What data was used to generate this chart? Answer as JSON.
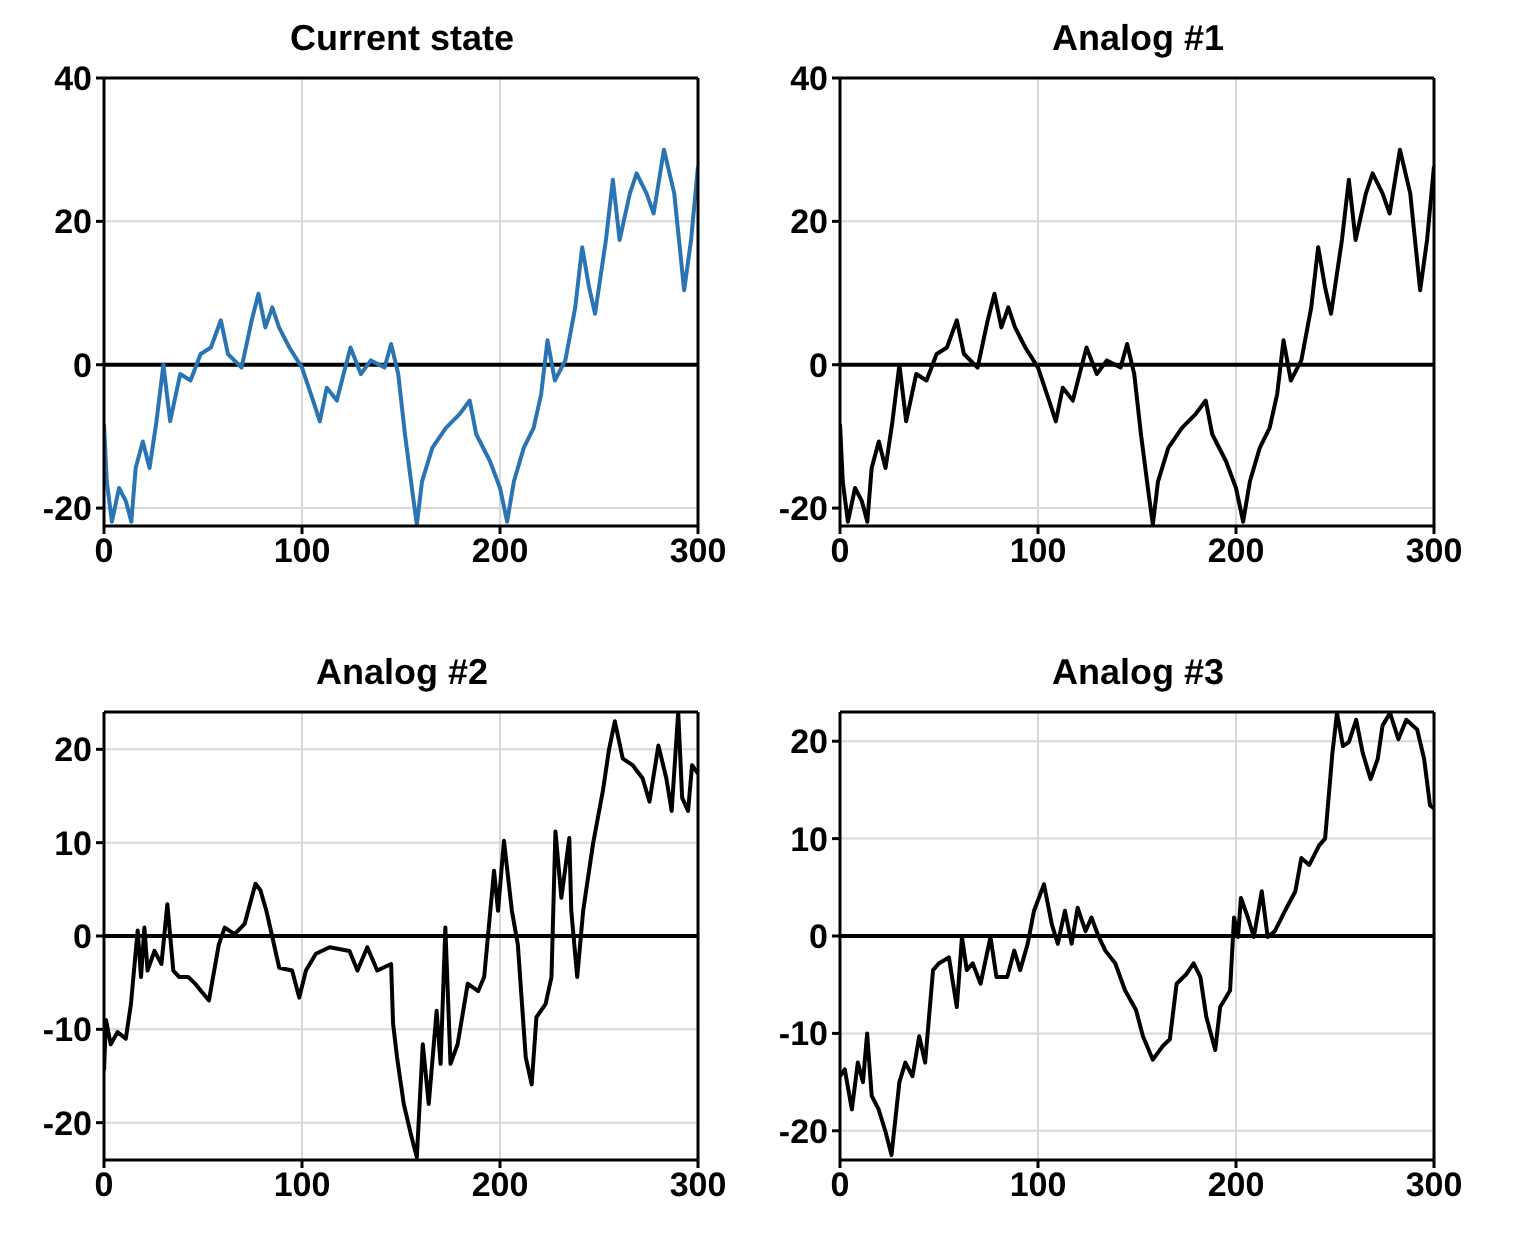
{
  "chart_data": [
    {
      "type": "line",
      "title": "Current state",
      "x": [
        0,
        1.4,
        4,
        7.6,
        11,
        13.8,
        16,
        19.6,
        23,
        26.5,
        30,
        33.4,
        38.5,
        43.7,
        48.8,
        54,
        59,
        62.6,
        69.5,
        74.6,
        78,
        81.5,
        85,
        88.4,
        93.6,
        100,
        105.6,
        109,
        112.5,
        117.6,
        121,
        124.5,
        129.7,
        134.8,
        141.7,
        145,
        148.6,
        152,
        155.5,
        158,
        160.6,
        165.8,
        172.7,
        179.6,
        184.7,
        188,
        195,
        200,
        203.6,
        207,
        212,
        217,
        220.8,
        224,
        227.7,
        233,
        238,
        241.5,
        245,
        248,
        253.5,
        257,
        260.4,
        265.6,
        269,
        274,
        277.6,
        282.8,
        288,
        293,
        296.5,
        300
      ],
      "series": [
        {
          "color": "#2a74b4",
          "values": [
            -8.3,
            -16.3,
            -21.9,
            -17.2,
            -19,
            -21.9,
            -14.4,
            -10.7,
            -14.4,
            -7.9,
            0,
            -7.9,
            -1.3,
            -2.2,
            1.5,
            2.4,
            6.2,
            1.5,
            -0.4,
            6.2,
            9.9,
            5.2,
            8,
            5.2,
            2.4,
            -0.4,
            -5,
            -7.9,
            -3.2,
            -5,
            -1.3,
            2.4,
            -1.3,
            0.6,
            -0.4,
            2.9,
            -1.3,
            -9.7,
            -17.2,
            -22.3,
            -16.3,
            -11.6,
            -8.8,
            -6.9,
            -5,
            -9.7,
            -13.5,
            -17.2,
            -21.9,
            -16.3,
            -11.6,
            -8.8,
            -4.1,
            3.4,
            -2.2,
            0.6,
            8,
            16.4,
            10.8,
            7.1,
            17.4,
            25.8,
            17.4,
            23.9,
            26.7,
            23.9,
            21.1,
            30,
            23.9,
            10.4,
            17.4,
            27.7
          ]
        }
      ],
      "xlim": [
        0,
        300
      ],
      "xticks": [
        0,
        100,
        200,
        300
      ],
      "ylim": [
        -22.5,
        40
      ],
      "yticks": [
        -20,
        0,
        20,
        40
      ],
      "grid": true,
      "ref_lines": [
        {
          "axis": "y",
          "value": 0,
          "color": "#000000"
        }
      ]
    },
    {
      "type": "line",
      "title": "Analog #1",
      "x": [
        0,
        1.4,
        4,
        7.6,
        11,
        13.8,
        16,
        19.6,
        23,
        26.5,
        30,
        33.4,
        38.5,
        43.7,
        48.8,
        54,
        59,
        62.6,
        69.5,
        74.6,
        78,
        81.5,
        85,
        88.4,
        93.6,
        100,
        105.6,
        109,
        112.5,
        117.6,
        121,
        124.5,
        129.7,
        134.8,
        141.7,
        145,
        148.6,
        152,
        155.5,
        158,
        160.6,
        165.8,
        172.7,
        179.6,
        184.7,
        188,
        195,
        200,
        203.6,
        207,
        212,
        217,
        220.8,
        224,
        227.7,
        233,
        238,
        241.5,
        245,
        248,
        253.5,
        257,
        260.4,
        265.6,
        269,
        274,
        277.6,
        282.8,
        288,
        293,
        296.5,
        300
      ],
      "series": [
        {
          "color": "#000000",
          "values": [
            -8.3,
            -16.3,
            -21.9,
            -17.2,
            -19,
            -21.9,
            -14.4,
            -10.7,
            -14.4,
            -7.9,
            0,
            -7.9,
            -1.3,
            -2.2,
            1.5,
            2.4,
            6.2,
            1.5,
            -0.4,
            6.2,
            9.9,
            5.2,
            8,
            5.2,
            2.4,
            -0.4,
            -5,
            -7.9,
            -3.2,
            -5,
            -1.3,
            2.4,
            -1.3,
            0.6,
            -0.4,
            2.9,
            -1.3,
            -9.7,
            -17.2,
            -22.3,
            -16.3,
            -11.6,
            -8.8,
            -6.9,
            -5,
            -9.7,
            -13.5,
            -17.2,
            -21.9,
            -16.3,
            -11.6,
            -8.8,
            -4.1,
            3.4,
            -2.2,
            0.6,
            8,
            16.4,
            10.8,
            7.1,
            17.4,
            25.8,
            17.4,
            23.9,
            26.7,
            23.9,
            21.1,
            30,
            23.9,
            10.4,
            17.4,
            27.7
          ]
        }
      ],
      "xlim": [
        0,
        300
      ],
      "xticks": [
        0,
        100,
        200,
        300
      ],
      "ylim": [
        -22.5,
        40
      ],
      "yticks": [
        -20,
        0,
        20,
        40
      ],
      "grid": true,
      "ref_lines": [
        {
          "axis": "y",
          "value": 0,
          "color": "#000000"
        }
      ]
    },
    {
      "type": "line",
      "title": "Analog #2",
      "x": [
        0,
        1,
        3.4,
        6.8,
        11,
        13.6,
        17,
        18.7,
        20.4,
        22,
        25.5,
        29,
        32,
        35,
        38,
        42.5,
        46,
        49,
        53,
        58,
        61,
        66,
        71,
        76.5,
        79,
        82,
        85,
        88.5,
        95,
        98.6,
        102,
        107,
        114,
        124,
        128,
        133,
        138,
        145,
        146,
        148,
        151.4,
        155.4,
        158,
        161,
        164,
        168,
        170,
        172.4,
        175,
        178.6,
        183.7,
        189,
        192,
        197,
        199,
        202,
        206,
        209,
        213,
        216,
        218.4,
        223,
        226,
        228,
        231,
        235,
        236,
        239,
        242,
        247,
        252,
        255,
        258,
        262,
        267,
        272,
        275.5,
        280,
        284,
        286.7,
        290,
        292,
        295,
        297,
        300
      ],
      "series": [
        {
          "color": "#000000",
          "values": [
            -14.4,
            -9,
            -11.6,
            -10.3,
            -11,
            -7.3,
            0.6,
            -4.4,
            0.9,
            -3.7,
            -1.6,
            -3,
            3.4,
            -3.7,
            -4.4,
            -4.4,
            -5.1,
            -5.9,
            -6.9,
            -0.9,
            0.9,
            0.2,
            1.3,
            5.6,
            4.9,
            2.7,
            -0.1,
            -3.4,
            -3.7,
            -6.6,
            -3.7,
            -1.9,
            -1.2,
            -1.6,
            -3.7,
            -1.2,
            -3.7,
            -3,
            -9.4,
            -13,
            -18,
            -21.6,
            -23.7,
            -11.6,
            -18,
            -8,
            -13.7,
            0.9,
            -13.7,
            -11.6,
            -5.1,
            -5.9,
            -4.4,
            7,
            2.7,
            10.2,
            2.7,
            -0.9,
            -13,
            -15.9,
            -8.7,
            -7.3,
            -4.4,
            11.2,
            4.1,
            10.5,
            2.7,
            -4.4,
            2.7,
            9.9,
            15.6,
            19.9,
            23,
            19,
            18.3,
            16.9,
            14.4,
            20.4,
            16.9,
            13.4,
            24,
            14.8,
            13.4,
            18.3,
            17.4
          ]
        }
      ],
      "xlim": [
        0,
        300
      ],
      "xticks": [
        0,
        100,
        200,
        300
      ],
      "ylim": [
        -24,
        24
      ],
      "yticks": [
        -20,
        -10,
        0,
        10,
        20
      ],
      "grid": true,
      "ref_lines": [
        {
          "axis": "y",
          "value": 0,
          "color": "#000000"
        }
      ]
    },
    {
      "type": "line",
      "title": "Analog #3",
      "x": [
        0,
        2.4,
        6,
        9,
        11.6,
        13.7,
        16,
        19.5,
        23,
        26,
        30,
        33,
        36.6,
        40,
        43,
        47,
        50,
        55,
        59,
        61.6,
        64,
        67,
        71,
        76,
        79,
        84.5,
        88,
        91,
        94.8,
        98,
        103,
        107,
        110,
        113.6,
        117,
        120,
        124,
        127,
        130.7,
        134,
        139,
        144,
        149.5,
        153,
        158,
        163,
        166.6,
        170,
        175,
        178.6,
        182,
        185,
        189.5,
        192,
        197,
        199,
        201,
        202.5,
        206,
        209,
        213,
        216,
        219.6,
        224.8,
        230,
        233,
        237,
        242,
        245,
        248.7,
        251,
        254,
        257,
        260.7,
        264,
        268,
        271.6,
        274,
        277.8,
        282,
        286,
        291.5,
        295,
        298,
        300
      ],
      "series": [
        {
          "color": "#000000",
          "values": [
            -14.4,
            -13.7,
            -17.8,
            -13,
            -15,
            -10,
            -16.4,
            -17.8,
            -20.1,
            -22.5,
            -15,
            -13,
            -14.4,
            -10.3,
            -13,
            -3.5,
            -2.8,
            -2.2,
            -7.3,
            -0.1,
            -3.5,
            -2.8,
            -4.9,
            -0.1,
            -4.2,
            -4.2,
            -1.5,
            -3.5,
            -0.8,
            2.6,
            5.3,
            1.2,
            -0.8,
            2.6,
            -0.8,
            2.9,
            0.5,
            1.9,
            -0.1,
            -1.5,
            -2.8,
            -5.6,
            -7.6,
            -10.3,
            -12.7,
            -11.3,
            -10.6,
            -4.9,
            -3.9,
            -2.8,
            -4.2,
            -8.3,
            -11.7,
            -7.3,
            -5.6,
            1.9,
            -0.1,
            3.9,
            1.9,
            -0.1,
            4.6,
            -0.1,
            0.5,
            2.6,
            4.6,
            8,
            7.3,
            9.3,
            10,
            18.8,
            22.9,
            19.5,
            19.9,
            22.2,
            18.8,
            16.1,
            18.2,
            21.6,
            22.9,
            20.2,
            22.2,
            21.2,
            18.2,
            13.4,
            13.1
          ]
        }
      ],
      "xlim": [
        0,
        300
      ],
      "xticks": [
        0,
        100,
        200,
        300
      ],
      "ylim": [
        -23,
        23
      ],
      "yticks": [
        -20,
        -10,
        0,
        10,
        20
      ],
      "grid": true,
      "ref_lines": [
        {
          "axis": "y",
          "value": 0,
          "color": "#000000"
        }
      ]
    }
  ]
}
